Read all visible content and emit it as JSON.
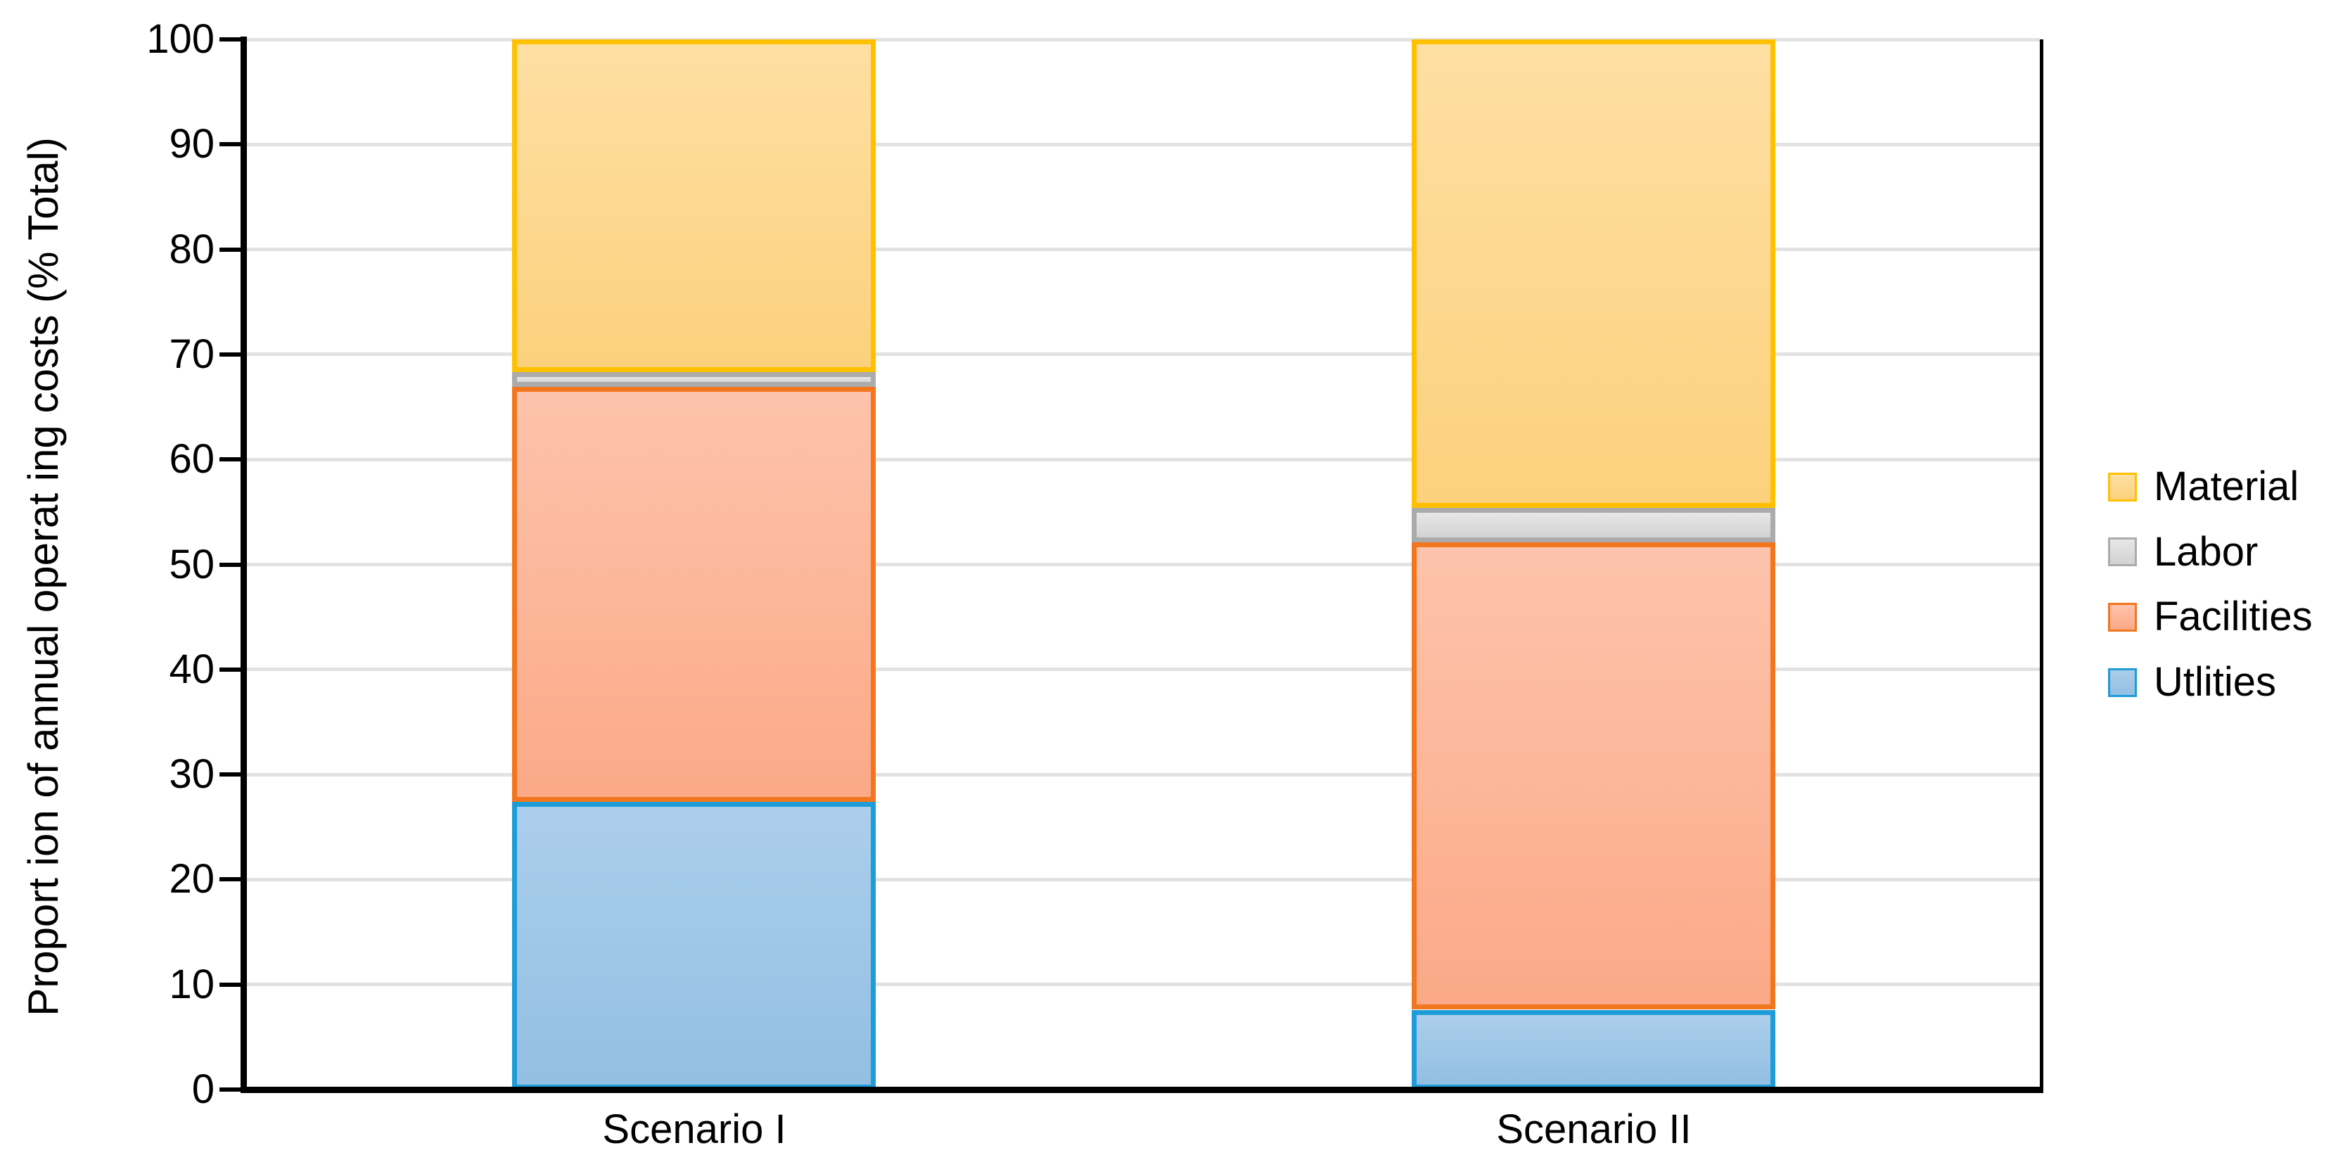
{
  "chart_data": {
    "type": "bar",
    "stacked": true,
    "stack_unit": "percent_of_total",
    "title": "",
    "xlabel": "",
    "ylabel": "Proport ion of annual operat ing costs (% Total)",
    "ylim": [
      0,
      100
    ],
    "ytick_step": 10,
    "yticks": [
      0,
      10,
      20,
      30,
      40,
      50,
      60,
      70,
      80,
      90,
      100
    ],
    "grid": "horizontal",
    "gridline_color": "#E2E2E2",
    "axis_color": "#000000",
    "categories": [
      "Scenario I",
      "Scenario II"
    ],
    "series": [
      {
        "name": "Utlities",
        "values": [
          27.4,
          7.6
        ],
        "fill_top": "#ABCEEB",
        "fill_bottom": "#93BFE3",
        "border": "#1E9CD9"
      },
      {
        "name": "Facilities",
        "values": [
          39.5,
          44.5
        ],
        "fill_top": "#FDC3AC",
        "fill_bottom": "#FBA987",
        "border": "#F2761E"
      },
      {
        "name": "Labor",
        "values": [
          1.4,
          3.3
        ],
        "fill_top": "#E7E7E7",
        "fill_bottom": "#D2D2D2",
        "border": "#ABABAB"
      },
      {
        "name": "Material",
        "values": [
          31.7,
          44.6
        ],
        "fill_top": "#FEDFA3",
        "fill_bottom": "#FCD17D",
        "border": "#FFC000"
      }
    ],
    "legend": {
      "position": "right",
      "items": [
        "Material",
        "Labor",
        "Facilities",
        "Utlities"
      ]
    }
  }
}
